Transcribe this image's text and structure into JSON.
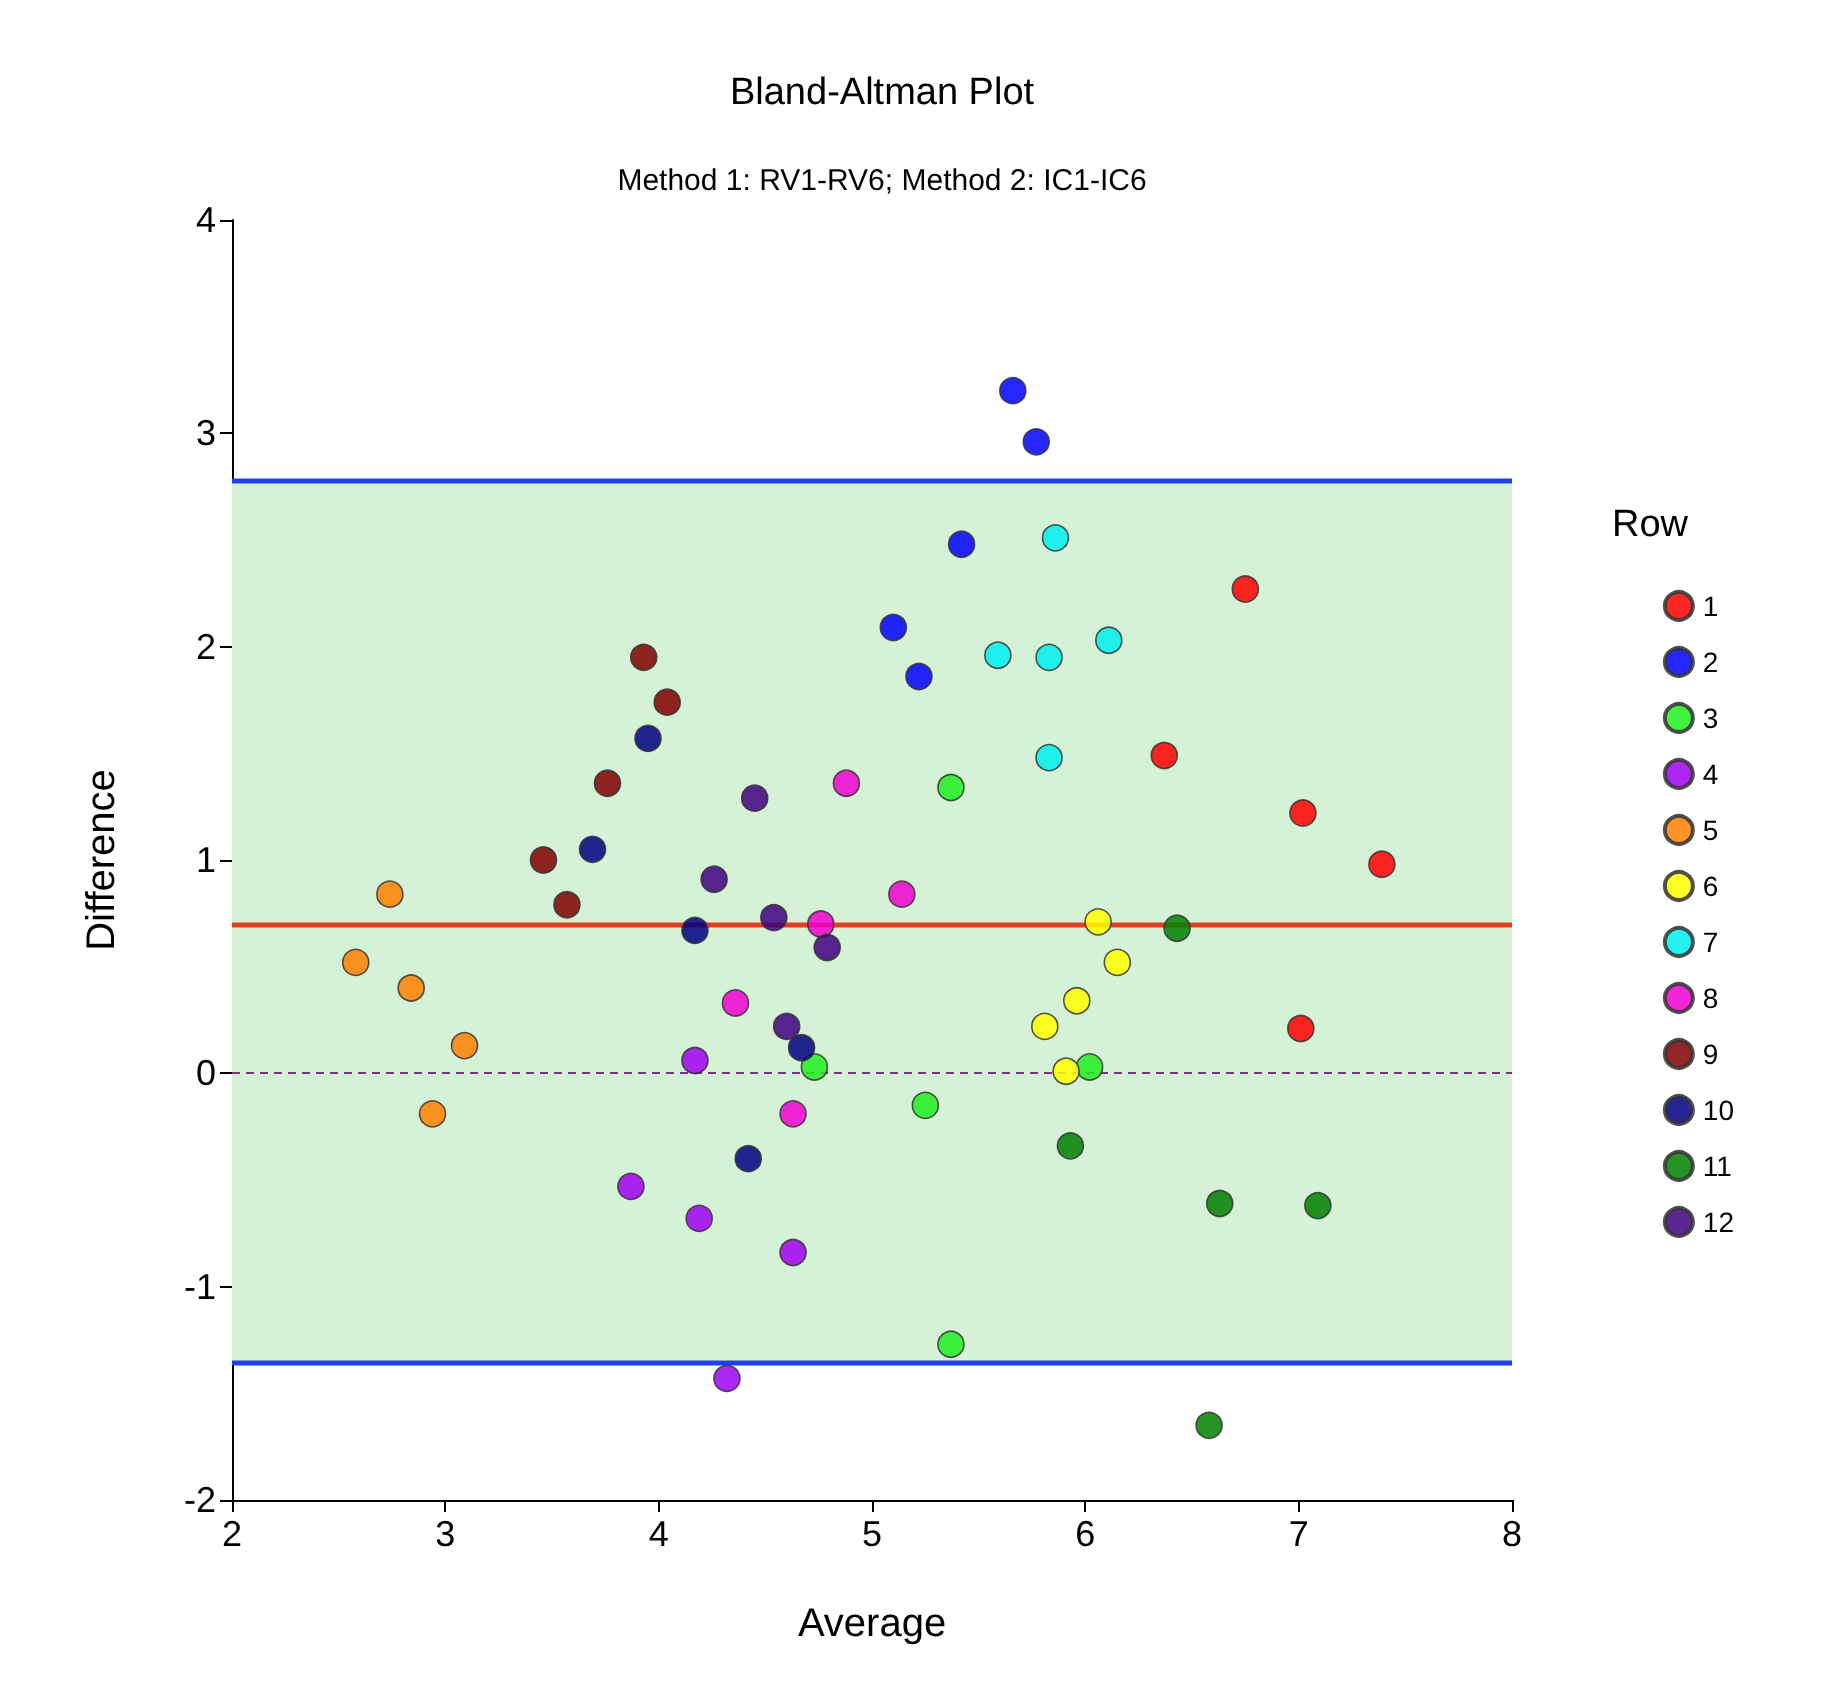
{
  "chart_data": {
    "type": "scatter",
    "title": "Bland-Altman Plot",
    "subtitle": "Method 1: RV1-RV6; Method 2: IC1-IC6",
    "xlabel": "Average",
    "ylabel": "Difference",
    "legend_title": "Row",
    "xlim": [
      2,
      8
    ],
    "xticks": [
      2,
      3,
      4,
      5,
      6,
      7,
      8
    ],
    "ylim": [
      -2,
      4
    ],
    "yticks": [
      -2,
      -1,
      0,
      1,
      2,
      3,
      4
    ],
    "grid": false,
    "legend": "right",
    "marker": "circle",
    "series": [
      {
        "name": "1",
        "color": "#ff0000",
        "x": [
          6.75,
          6.37,
          7.02,
          7.39,
          7.01
        ],
        "values": [
          2.27,
          1.49,
          1.22,
          0.98,
          0.21
        ]
      },
      {
        "name": "2",
        "color": "#0000ff",
        "x": [
          5.66,
          5.77,
          5.42,
          5.1,
          5.22
        ],
        "values": [
          3.2,
          2.96,
          2.48,
          2.09,
          1.86
        ]
      },
      {
        "name": "3",
        "color": "#20f020",
        "x": [
          5.37,
          4.73,
          5.25,
          6.02,
          5.37
        ],
        "values": [
          1.34,
          0.03,
          -0.15,
          0.03,
          -1.27
        ]
      },
      {
        "name": "4",
        "color": "#a000f0",
        "x": [
          4.17,
          3.87,
          4.19,
          4.63,
          4.32
        ],
        "values": [
          0.06,
          -0.53,
          -0.68,
          -0.84,
          -1.43
        ]
      },
      {
        "name": "5",
        "color": "#ff8000",
        "x": [
          2.74,
          2.58,
          2.84,
          3.09,
          2.94
        ],
        "values": [
          0.84,
          0.52,
          0.4,
          0.13,
          -0.19
        ]
      },
      {
        "name": "6",
        "color": "#ffff00",
        "x": [
          6.06,
          6.15,
          5.96,
          5.81,
          5.91
        ],
        "values": [
          0.71,
          0.52,
          0.34,
          0.22,
          0.01
        ]
      },
      {
        "name": "7",
        "color": "#00f0f0",
        "x": [
          5.86,
          5.59,
          5.83,
          6.11,
          5.83
        ],
        "values": [
          2.51,
          1.96,
          1.95,
          2.03,
          1.48
        ]
      },
      {
        "name": "8",
        "color": "#f000d0",
        "x": [
          4.88,
          5.14,
          4.76,
          4.36,
          4.63
        ],
        "values": [
          1.36,
          0.84,
          0.7,
          0.33,
          -0.19
        ]
      },
      {
        "name": "9",
        "color": "#800000",
        "x": [
          3.93,
          4.04,
          3.76,
          3.46,
          3.57
        ],
        "values": [
          1.95,
          1.74,
          1.36,
          1.0,
          0.79
        ]
      },
      {
        "name": "10",
        "color": "#000080",
        "x": [
          3.95,
          3.69,
          4.17,
          4.67,
          4.42
        ],
        "values": [
          1.57,
          1.05,
          0.67,
          0.12,
          -0.4
        ]
      },
      {
        "name": "11",
        "color": "#008000",
        "x": [
          6.43,
          5.93,
          6.63,
          7.09,
          6.58
        ],
        "values": [
          0.68,
          -0.34,
          -0.61,
          -0.62,
          -1.65
        ]
      },
      {
        "name": "12",
        "color": "#400080",
        "x": [
          4.45,
          4.26,
          4.54,
          4.79,
          4.6
        ],
        "values": [
          1.29,
          0.91,
          0.73,
          0.59,
          0.22
        ]
      }
    ],
    "ref_lines": [
      {
        "axis": "y",
        "value": 2.78,
        "color": "#2040f0",
        "line_style": "solid"
      },
      {
        "axis": "y",
        "value": 0.7,
        "color": "#e04020",
        "line_style": "solid"
      },
      {
        "axis": "y",
        "value": -1.36,
        "color": "#2040f0",
        "line_style": "solid"
      },
      {
        "axis": "y",
        "value": 0,
        "color": "#803080",
        "line_style": "dashed"
      }
    ],
    "bands": [
      {
        "axis": "y",
        "from": -1.36,
        "to": 2.78,
        "color": "#d6f2d6"
      }
    ]
  }
}
